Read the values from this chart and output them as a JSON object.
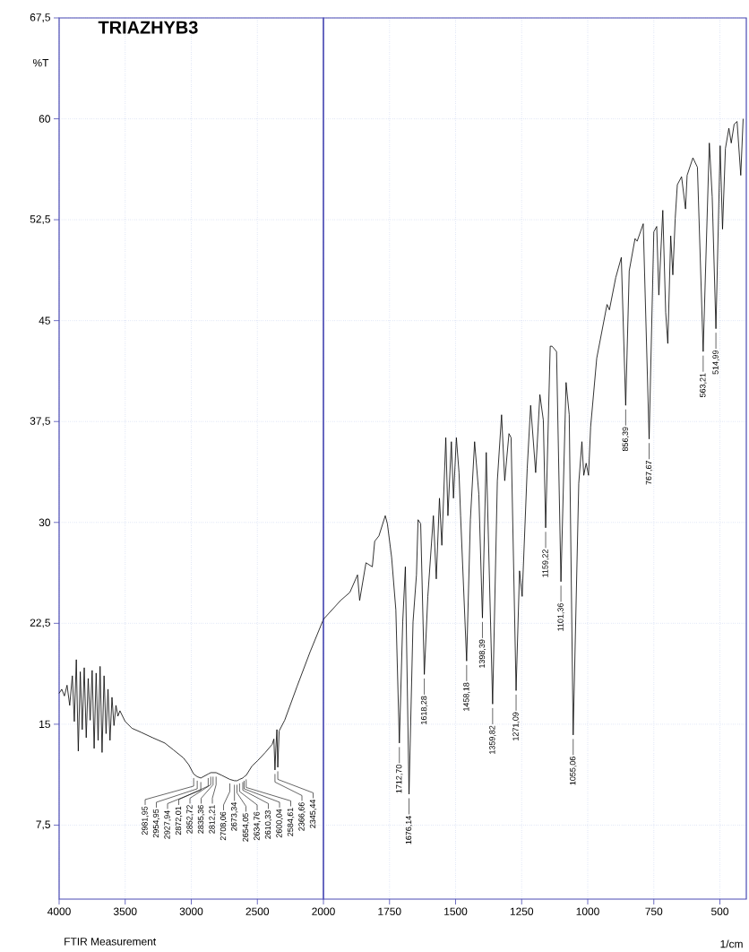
{
  "chart_data": [
    {
      "type": "line",
      "title": "TRIAZHYB3",
      "ylabel": "%T",
      "x": [
        4000,
        3980,
        3960,
        3940,
        3920,
        3900,
        3885,
        3870,
        3855,
        3840,
        3825,
        3810,
        3795,
        3780,
        3765,
        3750,
        3735,
        3720,
        3705,
        3690,
        3675,
        3660,
        3645,
        3630,
        3615,
        3600,
        3585,
        3570,
        3555,
        3540,
        3500,
        3449,
        3380,
        3293,
        3200,
        3136,
        3060,
        3020,
        2981.95,
        2954.95,
        2927.94,
        2872.01,
        2852.72,
        2835.36,
        2812.21,
        2769,
        2708.06,
        2673.34,
        2654.05,
        2634.76,
        2610.33,
        2600.04,
        2584.61,
        2540,
        2497,
        2440,
        2388,
        2375,
        2366.66,
        2360,
        2352,
        2345.44,
        2335,
        2293,
        2200,
        2100,
        2000
      ],
      "series": [
        {
          "color": "#000000",
          "values": [
            17.3,
            17.6,
            17.1,
            17.9,
            16.4,
            18.6,
            15.2,
            19.8,
            13.0,
            18.9,
            14.6,
            19.2,
            14.0,
            18.4,
            15.3,
            19.0,
            13.2,
            18.8,
            13.8,
            19.3,
            12.9,
            18.6,
            14.3,
            17.6,
            13.8,
            17.0,
            14.9,
            16.4,
            15.6,
            16.0,
            15.2,
            14.7,
            14.4,
            14.0,
            13.6,
            13.1,
            12.5,
            12.0,
            11.3,
            11.1,
            11.0,
            11.3,
            11.4,
            11.4,
            11.4,
            11.2,
            10.9,
            10.8,
            10.8,
            10.9,
            11.0,
            11.1,
            11.2,
            11.9,
            12.3,
            12.9,
            13.5,
            13.9,
            11.6,
            13.2,
            14.6,
            11.8,
            14.5,
            15.3,
            17.8,
            20.4,
            22.8
          ]
        }
      ],
      "xlim": [
        4000,
        2000
      ],
      "ylim": [
        2,
        67.5
      ],
      "xticks": [
        4000,
        3500,
        3000,
        2500
      ],
      "yticks": [
        {
          "value": 7.5,
          "label": "7,5"
        },
        15,
        {
          "value": 22.5,
          "label": "22,5"
        },
        30,
        {
          "value": 37.5,
          "label": "37,5"
        },
        45,
        {
          "value": 52.5,
          "label": "52,5"
        },
        60,
        {
          "value": 67.5,
          "label": "67,5"
        }
      ],
      "grid": true,
      "annotations": [
        "FTIR Measurement",
        {
          "text": "2981,95",
          "x": 2981.95,
          "y": 11.3
        },
        {
          "text": "2954,95",
          "x": 2954.95,
          "y": 11.1
        },
        {
          "text": "2927,94",
          "x": 2927.94,
          "y": 11.0
        },
        {
          "text": "2872,01",
          "x": 2872.01,
          "y": 11.3
        },
        {
          "text": "2852,72",
          "x": 2852.72,
          "y": 11.4
        },
        {
          "text": "2835,36",
          "x": 2835.36,
          "y": 11.4
        },
        {
          "text": "2812,21",
          "x": 2812.21,
          "y": 11.4
        },
        {
          "text": "2708,06",
          "x": 2708.06,
          "y": 10.9
        },
        {
          "text": "2673,34",
          "x": 2673.34,
          "y": 10.8
        },
        {
          "text": "2654,05",
          "x": 2654.05,
          "y": 10.8
        },
        {
          "text": "2634,76",
          "x": 2634.76,
          "y": 10.9
        },
        {
          "text": "2610,33",
          "x": 2610.33,
          "y": 11.0
        },
        {
          "text": "2600,04",
          "x": 2600.04,
          "y": 11.1
        },
        {
          "text": "2584,61",
          "x": 2584.61,
          "y": 11.2
        },
        {
          "text": "2366,66",
          "x": 2366.66,
          "y": 11.6
        },
        {
          "text": "2345,44",
          "x": 2345.44,
          "y": 11.8
        }
      ]
    },
    {
      "type": "line",
      "xlabel": "1/cm",
      "x": [
        2000,
        1935,
        1900,
        1871,
        1863,
        1839,
        1815,
        1806,
        1790,
        1766,
        1758,
        1742,
        1726,
        1712.7,
        1700,
        1690,
        1676.14,
        1661,
        1648,
        1642,
        1632,
        1618.28,
        1605,
        1584,
        1573,
        1561,
        1552,
        1537,
        1529,
        1516,
        1508,
        1497,
        1487,
        1481,
        1458.18,
        1444,
        1428,
        1412,
        1398.39,
        1384,
        1359.82,
        1342,
        1326,
        1314,
        1298,
        1290,
        1271.09,
        1258,
        1248,
        1229,
        1216,
        1197,
        1181,
        1168,
        1159.22,
        1142,
        1135,
        1118,
        1101.36,
        1082,
        1070,
        1055.06,
        1034,
        1022,
        1015,
        1006,
        997,
        989,
        966,
        927,
        918,
        894,
        873,
        856.39,
        843,
        821,
        813,
        790,
        767.67,
        750,
        739,
        731,
        716,
        705,
        697,
        686,
        678,
        669,
        661,
        645,
        630,
        624,
        602,
        585,
        563.21,
        540,
        529,
        514.99,
        499,
        490,
        479,
        466,
        457,
        446,
        435,
        421,
        412
      ],
      "series": [
        {
          "color": "#000000",
          "values": [
            22.8,
            24.2,
            24.8,
            26.1,
            24.2,
            27.0,
            26.7,
            28.6,
            29.0,
            30.5,
            29.9,
            27.4,
            23.5,
            13.6,
            22.6,
            26.7,
            9.8,
            22.6,
            26.1,
            30.2,
            29.9,
            18.7,
            24.5,
            30.5,
            25.8,
            31.8,
            28.3,
            36.3,
            30.5,
            36.0,
            31.8,
            36.3,
            33.7,
            30.5,
            19.7,
            30.2,
            36.0,
            32.1,
            22.9,
            35.2,
            16.5,
            33.1,
            38.0,
            33.1,
            36.6,
            36.3,
            17.5,
            26.4,
            24.5,
            34.0,
            38.7,
            33.7,
            39.5,
            37.6,
            29.6,
            43.1,
            43.1,
            42.7,
            25.6,
            40.4,
            38.0,
            14.2,
            32.9,
            36.0,
            33.5,
            34.4,
            33.5,
            37.1,
            42.2,
            46.2,
            45.8,
            48.2,
            49.7,
            38.7,
            48.7,
            51.1,
            50.9,
            52.2,
            36.2,
            51.6,
            52.0,
            46.9,
            53.2,
            45.6,
            43.3,
            51.3,
            48.4,
            52.6,
            55.1,
            55.7,
            53.3,
            55.8,
            57.1,
            56.4,
            42.7,
            58.2,
            54.2,
            44.4,
            58.0,
            51.8,
            57.8,
            59.3,
            58.2,
            59.6,
            59.8,
            55.8,
            60.0
          ]
        }
      ],
      "xlim": [
        2000,
        400
      ],
      "ylim": [
        2,
        67.5
      ],
      "xticks": [
        2000,
        1750,
        1500,
        1250,
        1000,
        750,
        500
      ],
      "yticks": [
        7.5,
        15,
        22.5,
        30,
        37.5,
        45,
        52.5,
        60,
        67.5
      ],
      "tick_labels": "x",
      "grid": true,
      "annotations": [
        {
          "text": "1712,70",
          "x": 1712.7,
          "y": 13.6
        },
        {
          "text": "1676,14",
          "x": 1676.14,
          "y": 9.8
        },
        {
          "text": "1618,28",
          "x": 1618.28,
          "y": 18.7
        },
        {
          "text": "1458,18",
          "x": 1458.18,
          "y": 19.7
        },
        {
          "text": "1398,39",
          "x": 1398.39,
          "y": 22.9
        },
        {
          "text": "1359,82",
          "x": 1359.82,
          "y": 16.5
        },
        {
          "text": "1271,09",
          "x": 1271.09,
          "y": 17.5
        },
        {
          "text": "1159,22",
          "x": 1159.22,
          "y": 29.6
        },
        {
          "text": "1101,36",
          "x": 1101.36,
          "y": 25.6
        },
        {
          "text": "1055,06",
          "x": 1055.06,
          "y": 14.2
        },
        {
          "text": "856,39",
          "x": 856.39,
          "y": 38.7
        },
        {
          "text": "767,67",
          "x": 767.67,
          "y": 36.2
        },
        {
          "text": "563,21",
          "x": 563.21,
          "y": 42.7
        },
        {
          "text": "514,99",
          "x": 514.99,
          "y": 44.4
        }
      ]
    }
  ]
}
